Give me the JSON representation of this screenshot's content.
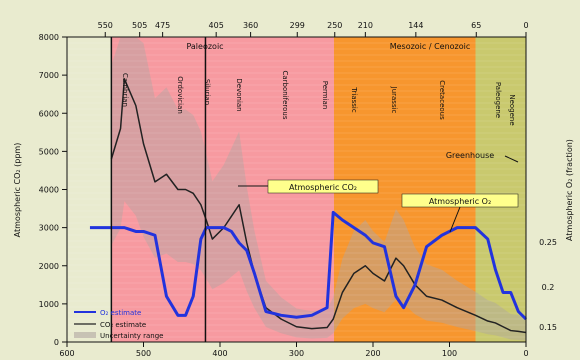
{
  "chart_data": {
    "type": "line",
    "top_ticks": [
      "550",
      "505",
      "475",
      "405",
      "360",
      "299",
      "250",
      "210",
      "144",
      "65",
      "0"
    ],
    "bottom_ticks": [
      "600",
      "500",
      "400",
      "300",
      "200",
      "100",
      "0"
    ],
    "left_ticks": [
      "0",
      "1000",
      "2000",
      "3000",
      "4000",
      "5000",
      "6000",
      "7000",
      "8000"
    ],
    "right_ticks": [
      "0.15",
      "0.2",
      "0.25"
    ],
    "ylabel_left": "Atmospheric CO₂ (ppm)",
    "ylabel_right": "Atmospheric O₂ (fraction)",
    "xlim": [
      600,
      0
    ],
    "ylim": [
      0,
      8000
    ],
    "x": [
      600,
      570,
      542,
      530,
      525,
      510,
      500,
      485,
      470,
      455,
      445,
      435,
      425,
      418,
      410,
      395,
      385,
      375,
      365,
      355,
      340,
      320,
      300,
      280,
      260,
      252,
      240,
      225,
      210,
      200,
      185,
      170,
      160,
      145,
      130,
      110,
      90,
      66,
      50,
      40,
      30,
      20,
      10,
      0
    ],
    "eras": [
      {
        "label": "Paleozoic",
        "from": 542,
        "to": 251,
        "color": "#f79aa0"
      },
      {
        "label": "Mesozoic",
        "from": 251,
        "to": 66,
        "color": "#f7962e"
      },
      {
        "label": "Cenozoic",
        "from": 66,
        "to": 0,
        "color": "#c9c96e"
      }
    ],
    "top_labels": [
      "Paleozoic",
      "Mesozoic / Cenozoic"
    ],
    "series": [
      {
        "name": "CO₂ estimate",
        "color": "#222222",
        "values": [
          null,
          null,
          4800,
          5600,
          6900,
          6200,
          5200,
          4200,
          4400,
          4000,
          4000,
          3900,
          3600,
          3200,
          2700,
          3000,
          3300,
          3600,
          2600,
          1800,
          900,
          600,
          400,
          350,
          380,
          600,
          1300,
          1800,
          2000,
          1800,
          1600,
          2200,
          2000,
          1500,
          1200,
          1100,
          900,
          700,
          550,
          500,
          400,
          300,
          280,
          250
        ]
      },
      {
        "name": "O₂ estimate",
        "color": "#2233dd",
        "values": [
          null,
          3000,
          3000,
          3000,
          3000,
          2900,
          2900,
          2800,
          1200,
          700,
          700,
          1200,
          2700,
          3000,
          3000,
          3000,
          2900,
          2600,
          2400,
          1800,
          800,
          700,
          650,
          700,
          900,
          3400,
          3200,
          3000,
          2800,
          2600,
          2500,
          1200,
          900,
          1500,
          2500,
          2800,
          3000,
          3000,
          2700,
          1900,
          1300,
          1300,
          800,
          600
        ]
      }
    ],
    "annotations": [
      "Cambrian",
      "Ordovician",
      "Silurian",
      "Devonian",
      "Carboniferous",
      "Permian",
      "Triassic",
      "Jurassic",
      "Cretaceous",
      "Paleogene",
      "Neogene",
      "Atmospheric CO₂",
      "Atmospheric O₂",
      "Greenhouse"
    ],
    "legend": [
      "O₂ estimate",
      "CO₂ estimate",
      "Uncertainty range"
    ]
  }
}
